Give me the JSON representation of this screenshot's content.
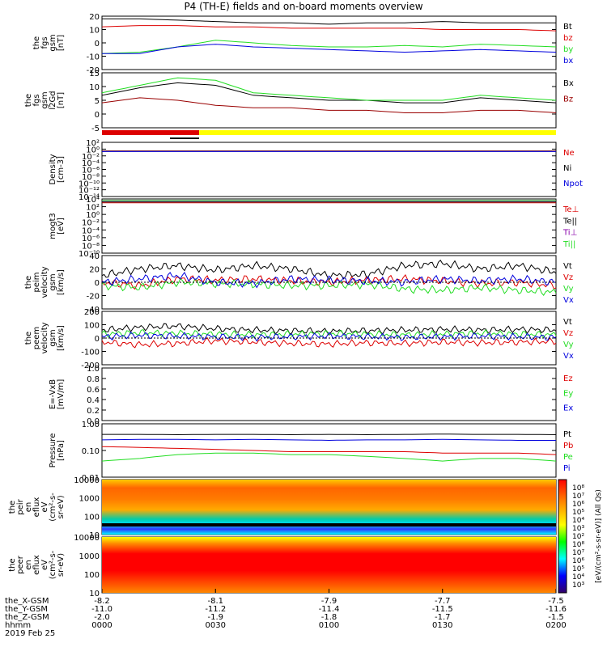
{
  "title": "P4 (TH-E) fields and on-board moments overview",
  "time_axis": {
    "tick_labels": [
      "0000",
      "0030",
      "0100",
      "0130",
      "0200"
    ],
    "row_labels": [
      "the_X-GSM",
      "the_Y-GSM",
      "the_Z-GSM",
      "hhmm",
      "2019 Feb 25"
    ],
    "rows": [
      [
        "-8.2",
        "-8.1",
        "-7.9",
        "-7.7",
        "-7.5"
      ],
      [
        "-11.0",
        "-11.2",
        "-11.4",
        "-11.5",
        "-11.6"
      ],
      [
        "-2.0",
        "-1.9",
        "-1.8",
        "-1.7",
        "-1.5"
      ]
    ]
  },
  "colors": {
    "black": "#000000",
    "red": "#dd0000",
    "green": "#22dd22",
    "blue": "#0000dd",
    "yellow": "#ffff00",
    "darkred": "#990000",
    "purple": "#8800aa",
    "teal": "#008888"
  },
  "chart_data": [
    {
      "type": "line",
      "id": "fgs",
      "ylabel": "the\nfgs\ngsm\n[nT]",
      "ylim": [
        -20,
        20
      ],
      "yticks": [
        "20",
        "10",
        "0",
        "-10",
        "-20"
      ],
      "x": [
        0,
        10,
        20,
        30,
        40,
        50,
        60,
        70,
        80,
        90,
        100,
        110,
        120
      ],
      "series": [
        {
          "name": "Bt",
          "color": "black",
          "values": [
            18,
            18,
            17,
            16,
            15,
            15,
            14,
            15,
            15,
            16,
            15,
            15,
            15
          ]
        },
        {
          "name": "bz",
          "color": "red",
          "values": [
            12,
            13,
            13,
            12,
            12,
            11,
            11,
            11,
            11,
            10,
            10,
            10,
            9
          ]
        },
        {
          "name": "by",
          "color": "green",
          "values": [
            -8,
            -7,
            -3,
            2,
            0,
            -2,
            -3,
            -3,
            -2,
            -3,
            -1,
            -2,
            -3
          ]
        },
        {
          "name": "bx",
          "color": "blue",
          "values": [
            -8,
            -8,
            -3,
            -1,
            -3,
            -4,
            -5,
            -6,
            -7,
            -6,
            -5,
            -6,
            -7
          ]
        }
      ]
    },
    {
      "type": "line",
      "id": "fgs_gsm_l2",
      "ylabel": "the\nfgs\ngsm\nl2Gd\n[nT]",
      "ylim": [
        -7,
        15
      ],
      "yticks": [
        "15",
        "10",
        "5",
        "0",
        "-5"
      ],
      "x": [
        0,
        10,
        20,
        30,
        40,
        50,
        60,
        70,
        80,
        90,
        100,
        110,
        120
      ],
      "series": [
        {
          "name": "Bx",
          "color": "black",
          "values": [
            6,
            9,
            11,
            10,
            6,
            5,
            4,
            4,
            3,
            3,
            5,
            4,
            3
          ]
        },
        {
          "name": "Bz",
          "color": "darkred",
          "values": [
            3,
            5,
            4,
            2,
            1,
            1,
            0,
            0,
            -1,
            -1,
            0,
            0,
            -1
          ]
        },
        {
          "name": "",
          "color": "green",
          "values": [
            7,
            10,
            13,
            12,
            7,
            6,
            5,
            4,
            4,
            4,
            6,
            5,
            4
          ]
        }
      ]
    },
    {
      "type": "line",
      "id": "density",
      "ylabel": "Density\n[cm-3]",
      "ylim": [
        -14,
        3
      ],
      "yticks": [
        "10²",
        "10⁰",
        "10⁻²",
        "10⁻⁴",
        "10⁻⁶",
        "10⁻⁸",
        "10⁻¹⁰",
        "10⁻¹²",
        "10⁻¹⁴"
      ],
      "x": [
        0,
        120
      ],
      "series": [
        {
          "name": "Ne",
          "color": "red",
          "values": [
            0.3,
            0.3
          ]
        },
        {
          "name": "Ni",
          "color": "black",
          "values": [
            0.2,
            0.2
          ]
        },
        {
          "name": "Npot",
          "color": "blue",
          "values": [
            0.1,
            0.1
          ]
        }
      ]
    },
    {
      "type": "line",
      "id": "temps",
      "ylabel": "mogt3\n[eV]",
      "ylim": [
        -10,
        4
      ],
      "yticks": [
        "10⁴",
        "10²",
        "10⁰",
        "10⁻²",
        "10⁻⁴",
        "10⁻⁶",
        "10⁻⁸",
        "10⁻¹⁰"
      ],
      "x": [
        0,
        120
      ],
      "series": [
        {
          "name": "Te⊥",
          "color": "red",
          "values": [
            3.0,
            3.0
          ]
        },
        {
          "name": "Te||",
          "color": "black",
          "values": [
            3.2,
            3.2
          ]
        },
        {
          "name": "Ti⊥",
          "color": "purple",
          "values": [
            3.5,
            3.5
          ]
        },
        {
          "name": "Ti||",
          "color": "green",
          "values": [
            3.6,
            3.6
          ]
        }
      ]
    },
    {
      "type": "line",
      "id": "peim_vel",
      "ylabel": "the\npeim\nvelocity\ngsm\n[km/s]",
      "ylim": [
        -40,
        40
      ],
      "yticks": [
        "40",
        "20",
        "0",
        "-20",
        "-40"
      ],
      "x": [
        0,
        10,
        20,
        30,
        40,
        50,
        60,
        70,
        80,
        90,
        100,
        110,
        120
      ],
      "series": [
        {
          "name": "Vt",
          "color": "black",
          "values": [
            10,
            20,
            25,
            18,
            25,
            20,
            10,
            12,
            25,
            28,
            20,
            25,
            15
          ]
        },
        {
          "name": "Vz",
          "color": "red",
          "values": [
            0,
            -5,
            5,
            3,
            5,
            2,
            0,
            3,
            5,
            2,
            -2,
            0,
            -5
          ]
        },
        {
          "name": "Vy",
          "color": "green",
          "values": [
            -5,
            -8,
            0,
            -2,
            -3,
            -5,
            -5,
            -3,
            -10,
            -12,
            -8,
            -12,
            -15
          ]
        },
        {
          "name": "Vx",
          "color": "blue",
          "values": [
            0,
            5,
            10,
            0,
            -2,
            5,
            3,
            2,
            0,
            5,
            2,
            5,
            0
          ]
        }
      ]
    },
    {
      "type": "line",
      "id": "peem_vel",
      "ylabel": "the\npeem\nvelocity\ngsm\n[km/s]",
      "ylim": [
        -200,
        200
      ],
      "yticks": [
        "200",
        "100",
        "0",
        "-100",
        "-200"
      ],
      "x": [
        0,
        10,
        20,
        30,
        40,
        50,
        60,
        70,
        80,
        90,
        100,
        110,
        120
      ],
      "series": [
        {
          "name": "Vt",
          "color": "black",
          "values": [
            60,
            80,
            90,
            70,
            60,
            55,
            50,
            55,
            60,
            65,
            60,
            65,
            60
          ]
        },
        {
          "name": "Vz",
          "color": "red",
          "values": [
            -30,
            -50,
            -40,
            -20,
            -30,
            -40,
            -45,
            -35,
            -40,
            -30,
            -35,
            -30,
            -25
          ]
        },
        {
          "name": "Vy",
          "color": "green",
          "values": [
            30,
            40,
            35,
            30,
            25,
            30,
            35,
            30,
            25,
            30,
            35,
            30,
            25
          ]
        },
        {
          "name": "Vx",
          "color": "blue",
          "values": [
            10,
            20,
            15,
            10,
            5,
            10,
            15,
            10,
            5,
            10,
            15,
            10,
            5
          ]
        }
      ]
    },
    {
      "type": "line",
      "id": "efield",
      "ylabel": "E=-VxB\n[mV/m]",
      "ylim": [
        0,
        1
      ],
      "yticks": [
        "1.0",
        "0.8",
        "0.6",
        "0.4",
        "0.2",
        "0.0"
      ],
      "x": [],
      "series": [
        {
          "name": "Ez",
          "color": "red",
          "values": []
        },
        {
          "name": "Ey",
          "color": "green",
          "values": []
        },
        {
          "name": "Ex",
          "color": "blue",
          "values": []
        }
      ]
    },
    {
      "type": "line",
      "id": "pressure",
      "ylabel": "Pressure\n[nPa]",
      "log": true,
      "ylim": [
        0.01,
        1.0
      ],
      "yticks": [
        "1.00",
        "0.10",
        "0.01"
      ],
      "x": [
        0,
        10,
        20,
        30,
        40,
        50,
        60,
        70,
        80,
        90,
        100,
        110,
        120
      ],
      "series": [
        {
          "name": "Pt",
          "color": "black",
          "values": [
            0.4,
            0.4,
            0.39,
            0.4,
            0.4,
            0.39,
            0.4,
            0.39,
            0.4,
            0.41,
            0.4,
            0.4,
            0.39
          ]
        },
        {
          "name": "Pb",
          "color": "red",
          "values": [
            0.14,
            0.13,
            0.12,
            0.11,
            0.1,
            0.09,
            0.09,
            0.09,
            0.09,
            0.08,
            0.08,
            0.08,
            0.07
          ]
        },
        {
          "name": "Pe",
          "color": "green",
          "values": [
            0.04,
            0.05,
            0.07,
            0.08,
            0.08,
            0.07,
            0.07,
            0.06,
            0.05,
            0.04,
            0.05,
            0.05,
            0.04
          ]
        },
        {
          "name": "Pi",
          "color": "blue",
          "values": [
            0.25,
            0.26,
            0.26,
            0.25,
            0.26,
            0.25,
            0.24,
            0.25,
            0.25,
            0.26,
            0.25,
            0.24,
            0.24
          ]
        }
      ]
    },
    {
      "type": "heatmap",
      "id": "peir_en",
      "ylabel": "the\npeir\nen\neflux\neV\n(cm²-s-\nsr-eV)",
      "yticks": [
        "10000",
        "1000",
        "100",
        "10"
      ]
    },
    {
      "type": "heatmap",
      "id": "peer_en",
      "ylabel": "the\npeer\nen\neflux\neV\n(cm²-s-\nsr-eV)",
      "yticks": [
        "10000",
        "1000",
        "100",
        "10"
      ]
    }
  ],
  "colorbar": {
    "label": "[eV/(cm²-s-sr-eV)] (All Qs)",
    "ticks_top": [
      "10⁸",
      "10⁷",
      "10⁶",
      "10⁵",
      "10⁴",
      "10³",
      "10²"
    ],
    "ticks_bottom": [
      "10⁸",
      "10⁷",
      "10⁶",
      "10⁵",
      "10⁴",
      "10³"
    ]
  }
}
